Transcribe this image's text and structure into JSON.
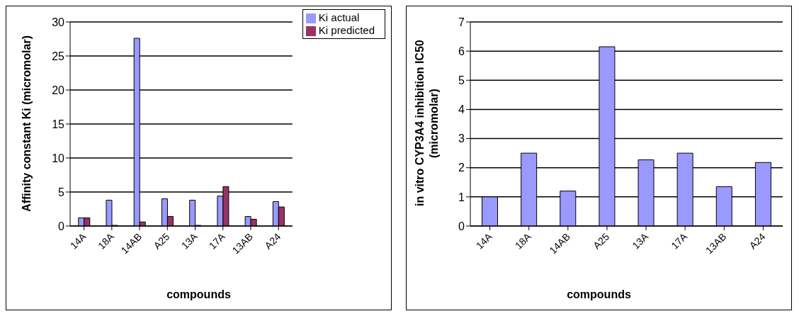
{
  "chart_data": [
    {
      "type": "bar",
      "xlabel": "compounds",
      "ylabel": "Affinity constant Ki (micromolar)",
      "categories": [
        "14A",
        "18A",
        "14AB",
        "A25",
        "13A",
        "17A",
        "13AB",
        "A24"
      ],
      "series": [
        {
          "name": "Ki actual",
          "color": "#9999ff",
          "values": [
            1.2,
            3.8,
            27.6,
            4.0,
            3.8,
            4.4,
            1.4,
            3.6
          ]
        },
        {
          "name": "Ki predicted",
          "color": "#993366",
          "values": [
            1.2,
            0.1,
            0.6,
            1.4,
            0.1,
            5.8,
            1.0,
            2.8
          ]
        }
      ],
      "ylim": [
        0,
        30
      ],
      "yticks": [
        0,
        5,
        10,
        15,
        20,
        25,
        30
      ],
      "grid": "y",
      "legend": "top right"
    },
    {
      "type": "bar",
      "xlabel": "compounds",
      "ylabel": "in vitro CYP3A4 inhibition IC50 (micromolar)",
      "categories": [
        "14A",
        "18A",
        "14AB",
        "A25",
        "13A",
        "17A",
        "13AB",
        "A24"
      ],
      "series": [
        {
          "color": "#9999ff",
          "values": [
            1.0,
            2.5,
            1.2,
            6.15,
            2.27,
            2.5,
            1.35,
            2.18
          ]
        }
      ],
      "ylim": [
        0,
        7
      ],
      "yticks": [
        0,
        1,
        2,
        3,
        4,
        5,
        6,
        7
      ],
      "grid": "y"
    }
  ]
}
